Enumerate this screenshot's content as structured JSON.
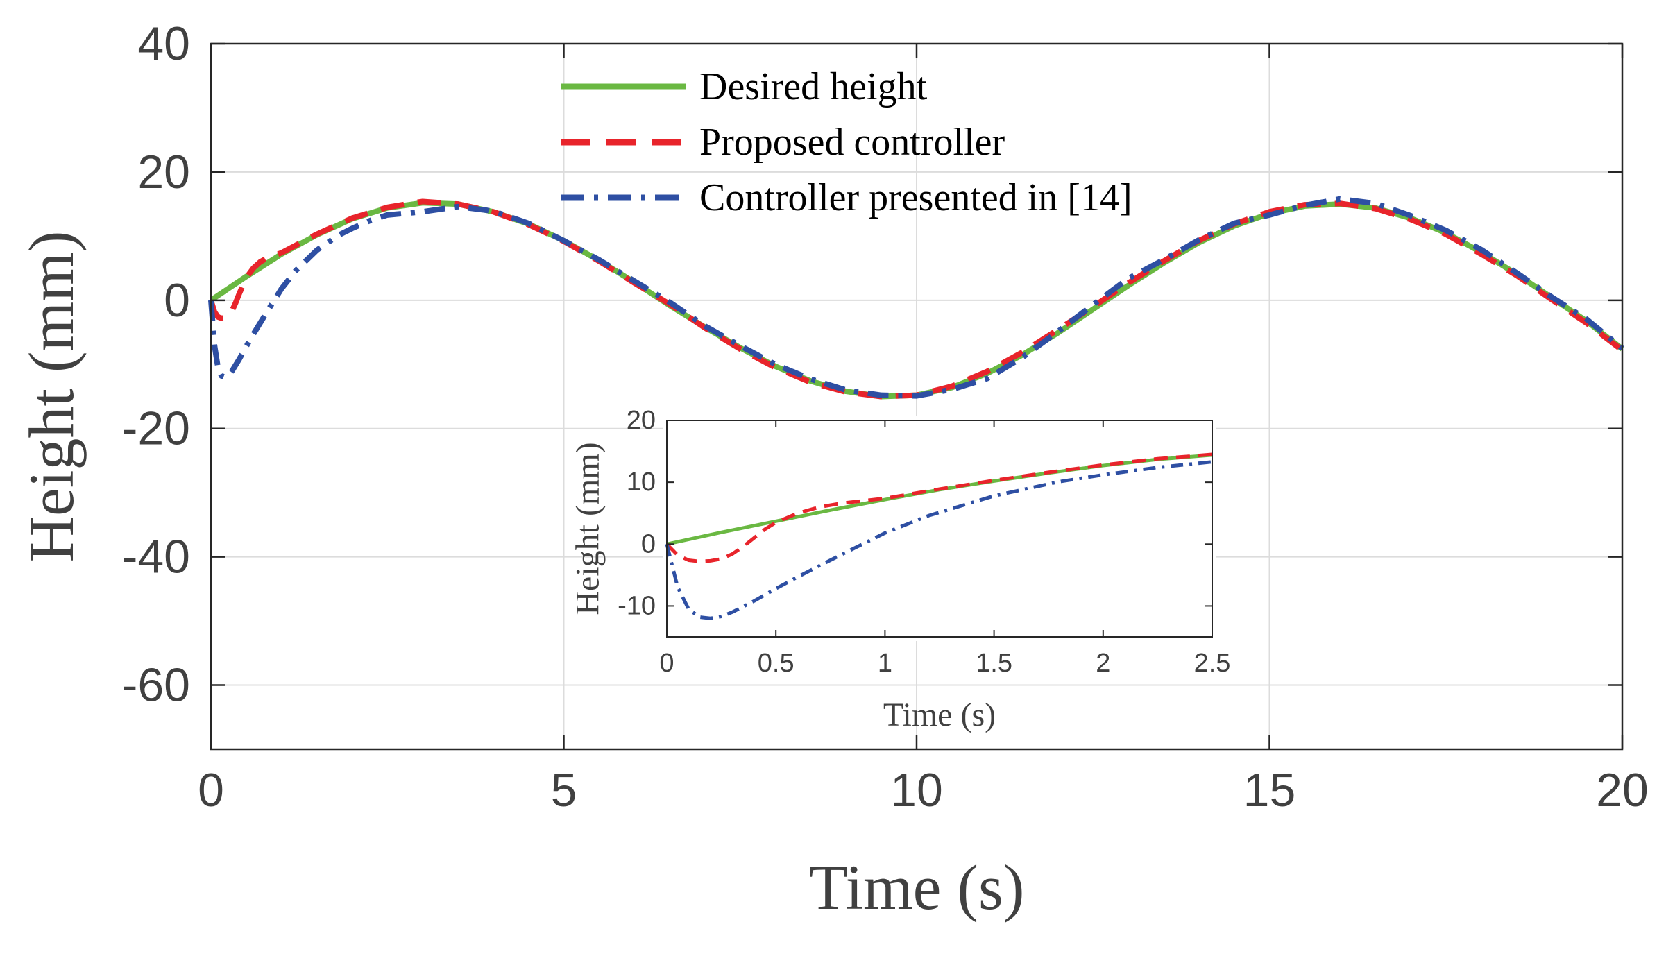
{
  "chart_data": [
    {
      "type": "line",
      "xlabel": "Time (s)",
      "ylabel": "Height (mm)",
      "xlim": [
        0,
        20
      ],
      "ylim": [
        -70,
        40
      ],
      "xticks": [
        0,
        5,
        10,
        15,
        20
      ],
      "yticks": [
        40,
        20,
        0,
        -20,
        -40,
        -60
      ],
      "grid": true,
      "legend_position": "top-center",
      "series": [
        {
          "name": "Desired height",
          "color": "#6ab842",
          "style": "solid",
          "x": [
            0,
            0.5,
            1,
            1.5,
            2,
            2.5,
            3,
            3.5,
            4,
            4.5,
            5,
            5.5,
            6,
            6.5,
            7,
            7.5,
            8,
            8.5,
            9,
            9.5,
            10,
            10.5,
            11,
            11.5,
            12,
            12.5,
            13,
            13.5,
            14,
            14.5,
            15,
            15.5,
            16,
            16.5,
            17,
            17.5,
            18,
            18.5,
            19,
            19.5,
            20
          ],
          "y": [
            0,
            3.7,
            7.2,
            10.2,
            12.7,
            14.4,
            15.2,
            15.0,
            13.8,
            11.9,
            9.3,
            6.2,
            2.8,
            -0.8,
            -4.2,
            -7.4,
            -10.3,
            -12.6,
            -14.2,
            -15.0,
            -14.8,
            -13.6,
            -11.4,
            -8.5,
            -5.1,
            -1.4,
            2.3,
            5.8,
            9.0,
            11.6,
            13.5,
            14.7,
            15.0,
            14.4,
            12.8,
            10.5,
            7.5,
            4.1,
            0.4,
            -3.3,
            -7.6
          ]
        },
        {
          "name": "Proposed controller",
          "color": "#e8242b",
          "style": "dashed",
          "x": [
            0,
            0.05,
            0.1,
            0.15,
            0.2,
            0.25,
            0.3,
            0.35,
            0.4,
            0.5,
            0.6,
            0.7,
            0.8,
            1,
            1.5,
            2,
            2.5,
            3,
            3.5,
            4,
            4.5,
            5,
            5.5,
            6,
            6.5,
            7,
            7.5,
            8,
            8.5,
            9,
            9.5,
            10,
            10.5,
            11,
            11.5,
            12,
            12.5,
            13,
            13.5,
            14,
            14.5,
            15,
            15.5,
            16,
            16.5,
            17,
            17.5,
            18,
            18.5,
            19,
            19.5,
            20
          ],
          "y": [
            0,
            -1.8,
            -2.6,
            -2.8,
            -2.7,
            -2.4,
            -1.6,
            -0.4,
            1.0,
            3.5,
            5.0,
            6.0,
            6.6,
            7.4,
            10.3,
            12.8,
            14.5,
            15.4,
            15.0,
            13.8,
            11.8,
            9.2,
            6.1,
            2.7,
            -0.6,
            -4.3,
            -7.6,
            -10.5,
            -12.8,
            -14.3,
            -15.0,
            -14.8,
            -13.4,
            -11.1,
            -8.1,
            -4.6,
            -1.0,
            2.7,
            6.1,
            9.3,
            11.9,
            13.8,
            14.9,
            15.1,
            14.3,
            12.6,
            10.3,
            7.2,
            3.9,
            0.1,
            -3.6,
            -7.8
          ]
        },
        {
          "name": "Controller presented in [14]",
          "color": "#2e4fa3",
          "style": "dashdot",
          "x": [
            0,
            0.05,
            0.1,
            0.15,
            0.2,
            0.25,
            0.3,
            0.4,
            0.5,
            0.6,
            0.8,
            1,
            1.2,
            1.5,
            1.8,
            2,
            2.25,
            2.5,
            3,
            3.5,
            4,
            4.5,
            5,
            5.5,
            6,
            6.5,
            7,
            7.5,
            8,
            8.5,
            9,
            9.5,
            10,
            10.5,
            11,
            11.5,
            12,
            12.5,
            13,
            13.5,
            14,
            14.5,
            15,
            15.5,
            16,
            16.5,
            17,
            17.5,
            18,
            18.5,
            19,
            19.5,
            20
          ],
          "y": [
            0,
            -7,
            -10.5,
            -11.8,
            -12,
            -11.7,
            -11,
            -9.2,
            -7.2,
            -5.3,
            -1.7,
            1.8,
            4.6,
            7.8,
            10.1,
            11.2,
            12.4,
            13.3,
            13.8,
            14.6,
            13.9,
            12.0,
            9.3,
            6.3,
            3.0,
            -0.3,
            -4.0,
            -7.1,
            -10.0,
            -12.3,
            -14.0,
            -14.8,
            -14.9,
            -13.9,
            -12.2,
            -8.9,
            -4.9,
            -0.7,
            3.4,
            6.3,
            9.4,
            12.0,
            13.3,
            14.8,
            15.8,
            15.1,
            13.2,
            10.9,
            7.9,
            4.3,
            0.5,
            -3.0,
            -7.5
          ]
        }
      ]
    },
    {
      "type": "line",
      "xlabel": "Time (s)",
      "ylabel": "Height (mm)",
      "xlim": [
        0,
        2.5
      ],
      "ylim": [
        -15,
        20
      ],
      "xticks": [
        0,
        0.5,
        1,
        1.5,
        2,
        2.5
      ],
      "xtick_labels": [
        "0",
        "0.5",
        "1",
        "1.5",
        "2",
        "2.5"
      ],
      "yticks": [
        20,
        10,
        0,
        -10
      ],
      "grid": false,
      "series": [
        {
          "name": "Desired height",
          "color": "#6ab842",
          "style": "solid",
          "x": [
            0,
            0.25,
            0.5,
            0.75,
            1,
            1.25,
            1.5,
            1.75,
            2,
            2.25,
            2.5
          ],
          "y": [
            0,
            1.9,
            3.7,
            5.5,
            7.2,
            8.8,
            10.2,
            11.5,
            12.7,
            13.7,
            14.4
          ]
        },
        {
          "name": "Proposed controller",
          "color": "#e8242b",
          "style": "dashed",
          "x": [
            0,
            0.05,
            0.1,
            0.15,
            0.2,
            0.25,
            0.3,
            0.35,
            0.4,
            0.45,
            0.5,
            0.6,
            0.7,
            0.8,
            1,
            1.25,
            1.5,
            1.75,
            2,
            2.25,
            2.5
          ],
          "y": [
            0,
            -1.8,
            -2.6,
            -2.8,
            -2.7,
            -2.4,
            -1.6,
            -0.4,
            1.0,
            2.4,
            3.5,
            5.0,
            6.0,
            6.6,
            7.4,
            8.9,
            10.3,
            11.6,
            12.8,
            13.8,
            14.5
          ]
        },
        {
          "name": "Controller presented in [14]",
          "color": "#2e4fa3",
          "style": "dashdot",
          "x": [
            0,
            0.05,
            0.1,
            0.15,
            0.2,
            0.25,
            0.3,
            0.4,
            0.5,
            0.6,
            0.8,
            1,
            1.2,
            1.5,
            1.8,
            2,
            2.25,
            2.5
          ],
          "y": [
            0,
            -7,
            -10.5,
            -11.8,
            -12,
            -11.7,
            -11,
            -9.2,
            -7.2,
            -5.3,
            -1.7,
            1.8,
            4.6,
            7.8,
            10.1,
            11.2,
            12.4,
            13.3
          ]
        }
      ]
    }
  ]
}
